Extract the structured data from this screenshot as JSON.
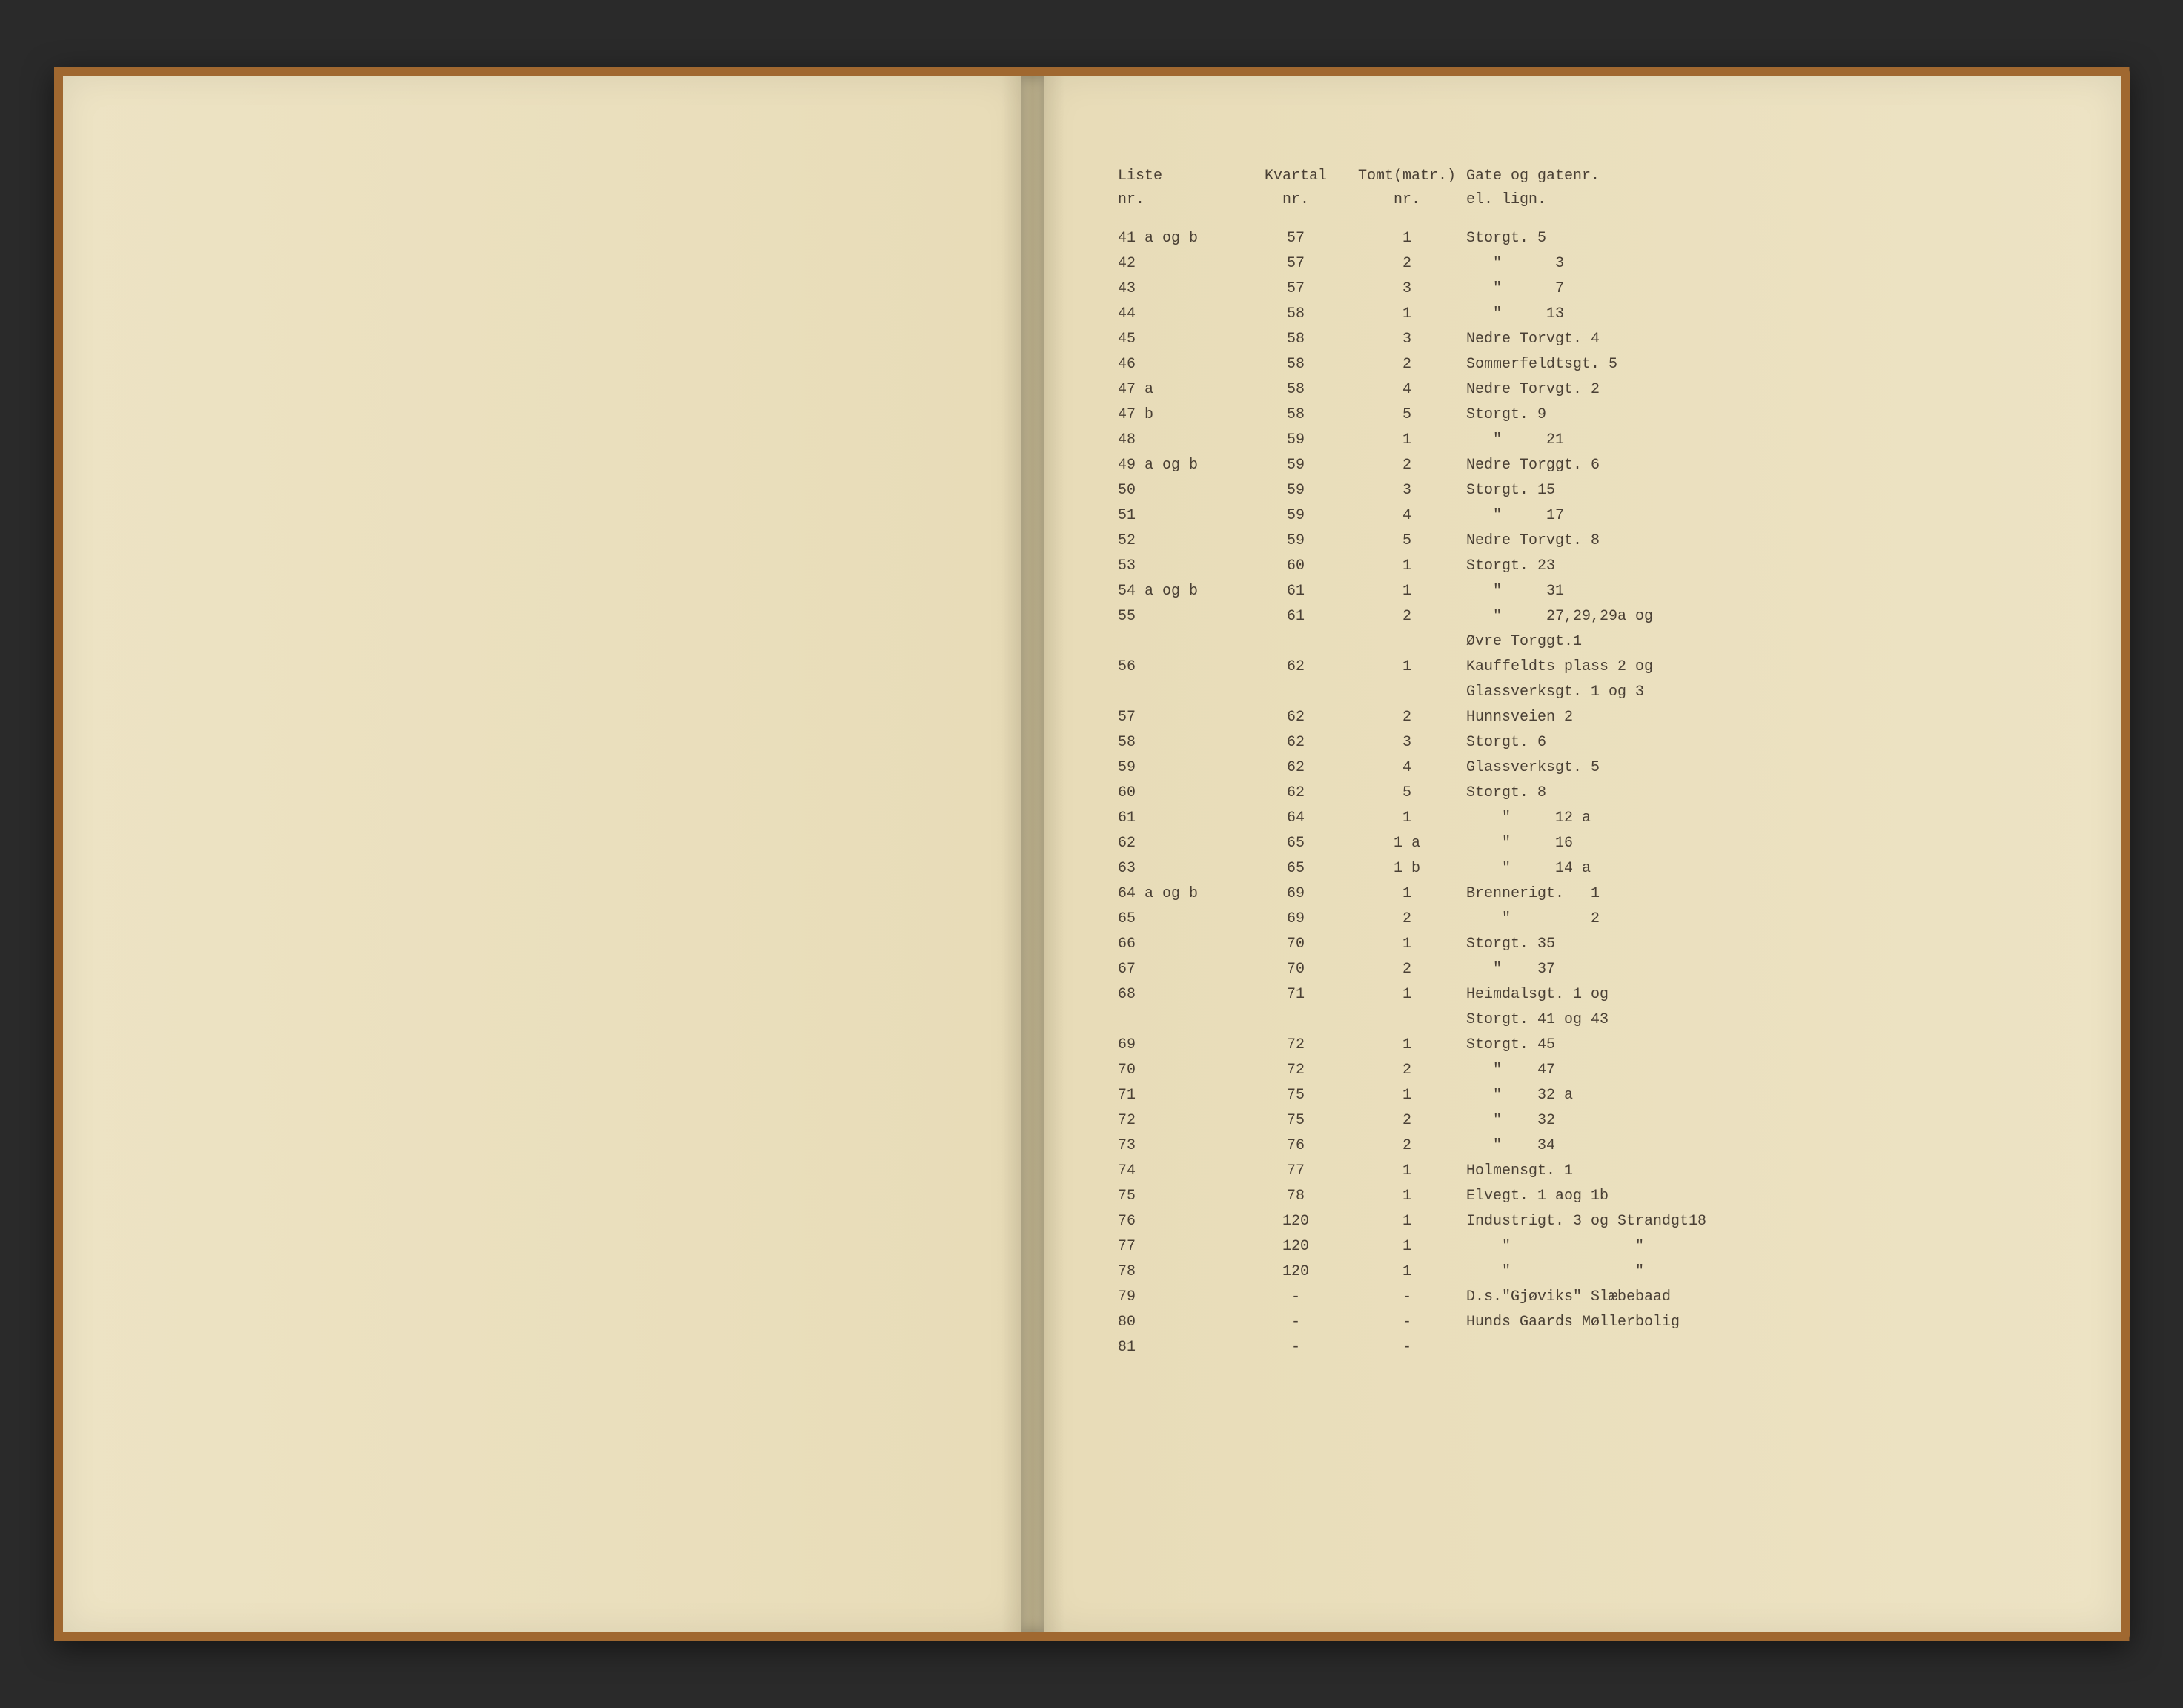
{
  "headers": {
    "liste": "Liste\nnr.",
    "kvartal": "Kvartal\nnr.",
    "tomt": "Tomt(matr.)\nnr.",
    "gate": "Gate og gatenr.\nel. lign."
  },
  "rows": [
    {
      "liste": "41 a og b",
      "kvartal": "57",
      "tomt": "1",
      "gate": "Storgt. 5"
    },
    {
      "liste": "42",
      "kvartal": "57",
      "tomt": "2",
      "gate": "   \"      3"
    },
    {
      "liste": "43",
      "kvartal": "57",
      "tomt": "3",
      "gate": "   \"      7"
    },
    {
      "liste": "44",
      "kvartal": "58",
      "tomt": "1",
      "gate": "   \"     13"
    },
    {
      "liste": "45",
      "kvartal": "58",
      "tomt": "3",
      "gate": "Nedre Torvgt. 4"
    },
    {
      "liste": "46",
      "kvartal": "58",
      "tomt": "2",
      "gate": "Sommerfeldtsgt. 5"
    },
    {
      "liste": "47 a",
      "kvartal": "58",
      "tomt": "4",
      "gate": "Nedre Torvgt. 2"
    },
    {
      "liste": "47 b",
      "kvartal": "58",
      "tomt": "5",
      "gate": "Storgt. 9"
    },
    {
      "liste": "48",
      "kvartal": "59",
      "tomt": "1",
      "gate": "   \"     21"
    },
    {
      "liste": "49 a og b",
      "kvartal": "59",
      "tomt": "2",
      "gate": "Nedre Torggt. 6"
    },
    {
      "liste": "50",
      "kvartal": "59",
      "tomt": "3",
      "gate": "Storgt. 15"
    },
    {
      "liste": "51",
      "kvartal": "59",
      "tomt": "4",
      "gate": "   \"     17"
    },
    {
      "liste": "52",
      "kvartal": "59",
      "tomt": "5",
      "gate": "Nedre Torvgt. 8"
    },
    {
      "liste": "53",
      "kvartal": "60",
      "tomt": "1",
      "gate": "Storgt. 23"
    },
    {
      "liste": "54 a og b",
      "kvartal": "61",
      "tomt": "1",
      "gate": "   \"     31"
    },
    {
      "liste": "55",
      "kvartal": "61",
      "tomt": "2",
      "gate": "   \"     27,29,29a og"
    },
    {
      "liste": "",
      "kvartal": "",
      "tomt": "",
      "gate": "Øvre Torggt.1"
    },
    {
      "liste": "56",
      "kvartal": "62",
      "tomt": "1",
      "gate": "Kauffeldts plass 2 og"
    },
    {
      "liste": "",
      "kvartal": "",
      "tomt": "",
      "gate": "Glassverksgt. 1 og 3"
    },
    {
      "liste": "57",
      "kvartal": "62",
      "tomt": "2",
      "gate": "Hunnsveien 2"
    },
    {
      "liste": "58",
      "kvartal": "62",
      "tomt": "3",
      "gate": "Storgt. 6"
    },
    {
      "liste": "59",
      "kvartal": "62",
      "tomt": "4",
      "gate": "Glassverksgt. 5"
    },
    {
      "liste": "60",
      "kvartal": "62",
      "tomt": "5",
      "gate": "Storgt. 8"
    },
    {
      "liste": "61",
      "kvartal": "64",
      "tomt": "1",
      "gate": "    \"     12 a"
    },
    {
      "liste": "62",
      "kvartal": "65",
      "tomt": "1 a",
      "gate": "    \"     16"
    },
    {
      "liste": "63",
      "kvartal": "65",
      "tomt": "1 b",
      "gate": "    \"     14 a"
    },
    {
      "liste": "64 a og b",
      "kvartal": "69",
      "tomt": "1",
      "gate": "Brennerigt.   1"
    },
    {
      "liste": "65",
      "kvartal": "69",
      "tomt": "2",
      "gate": "    \"         2"
    },
    {
      "liste": "66",
      "kvartal": "70",
      "tomt": "1",
      "gate": "Storgt. 35"
    },
    {
      "liste": "67",
      "kvartal": "70",
      "tomt": "2",
      "gate": "   \"    37"
    },
    {
      "liste": "68",
      "kvartal": "71",
      "tomt": "1",
      "gate": "Heimdalsgt. 1 og"
    },
    {
      "liste": "",
      "kvartal": "",
      "tomt": "",
      "gate": "Storgt. 41 og 43"
    },
    {
      "liste": "69",
      "kvartal": "72",
      "tomt": "1",
      "gate": "Storgt. 45"
    },
    {
      "liste": "70",
      "kvartal": "72",
      "tomt": "2",
      "gate": "   \"    47"
    },
    {
      "liste": "71",
      "kvartal": "75",
      "tomt": "1",
      "gate": "   \"    32 a"
    },
    {
      "liste": "72",
      "kvartal": "75",
      "tomt": "2",
      "gate": "   \"    32"
    },
    {
      "liste": "73",
      "kvartal": "76",
      "tomt": "2",
      "gate": "   \"    34"
    },
    {
      "liste": "74",
      "kvartal": "77",
      "tomt": "1",
      "gate": "Holmensgt. 1"
    },
    {
      "liste": "75",
      "kvartal": "78",
      "tomt": "1",
      "gate": "Elvegt. 1 aog 1b"
    },
    {
      "liste": "76",
      "kvartal": "120",
      "tomt": "1",
      "gate": "Industrigt. 3 og Strandgt18"
    },
    {
      "liste": "77",
      "kvartal": "120",
      "tomt": "1",
      "gate": "    \"              \""
    },
    {
      "liste": "78",
      "kvartal": "120",
      "tomt": "1",
      "gate": "    \"              \""
    },
    {
      "liste": "79",
      "kvartal": "-",
      "tomt": "-",
      "gate": "D.s.\"Gjøviks\" Slæbebaad"
    },
    {
      "liste": "80",
      "kvartal": "-",
      "tomt": "-",
      "gate": "Hunds Gaards Møllerbolig"
    },
    {
      "liste": "81",
      "kvartal": "-",
      "tomt": "-",
      "gate": ""
    }
  ],
  "styling": {
    "page_bg": "#ede3c4",
    "cover_color": "#1a3818",
    "corner_color": "#a06830",
    "text_color": "#4a4035",
    "font_family": "Courier New",
    "font_size_pt": 15
  }
}
